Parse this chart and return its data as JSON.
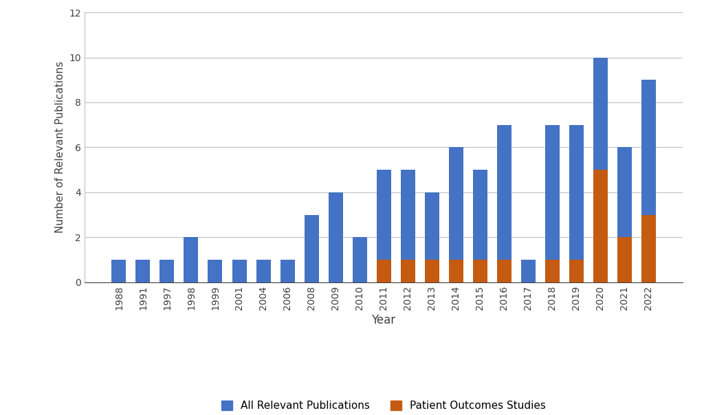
{
  "years": [
    "1988",
    "1991",
    "1997",
    "1998",
    "1999",
    "2001",
    "2004",
    "2006",
    "2008",
    "2009",
    "2010",
    "2011",
    "2012",
    "2013",
    "2014",
    "2015",
    "2016",
    "2017",
    "2018",
    "2019",
    "2020",
    "2021",
    "2022"
  ],
  "all_publications": [
    1,
    1,
    1,
    2,
    1,
    1,
    1,
    1,
    3,
    4,
    2,
    5,
    5,
    4,
    6,
    5,
    7,
    1,
    7,
    7,
    10,
    6,
    9
  ],
  "patient_outcomes": [
    0,
    0,
    0,
    0,
    0,
    0,
    0,
    0,
    0,
    0,
    0,
    1,
    1,
    1,
    1,
    1,
    1,
    0,
    1,
    1,
    5,
    2,
    3
  ],
  "bar_color_all": "#4472C4",
  "bar_color_outcomes": "#C55A11",
  "ylabel": "Number of Relevant Publications",
  "xlabel": "Year",
  "ylim": [
    0,
    12
  ],
  "yticks": [
    0,
    2,
    4,
    6,
    8,
    10,
    12
  ],
  "legend_all": "All Relevant Publications",
  "legend_outcomes": "Patient Outcomes Studies",
  "background_color": "#ffffff",
  "grid_color": "#c0c0c0",
  "bar_width": 0.6
}
